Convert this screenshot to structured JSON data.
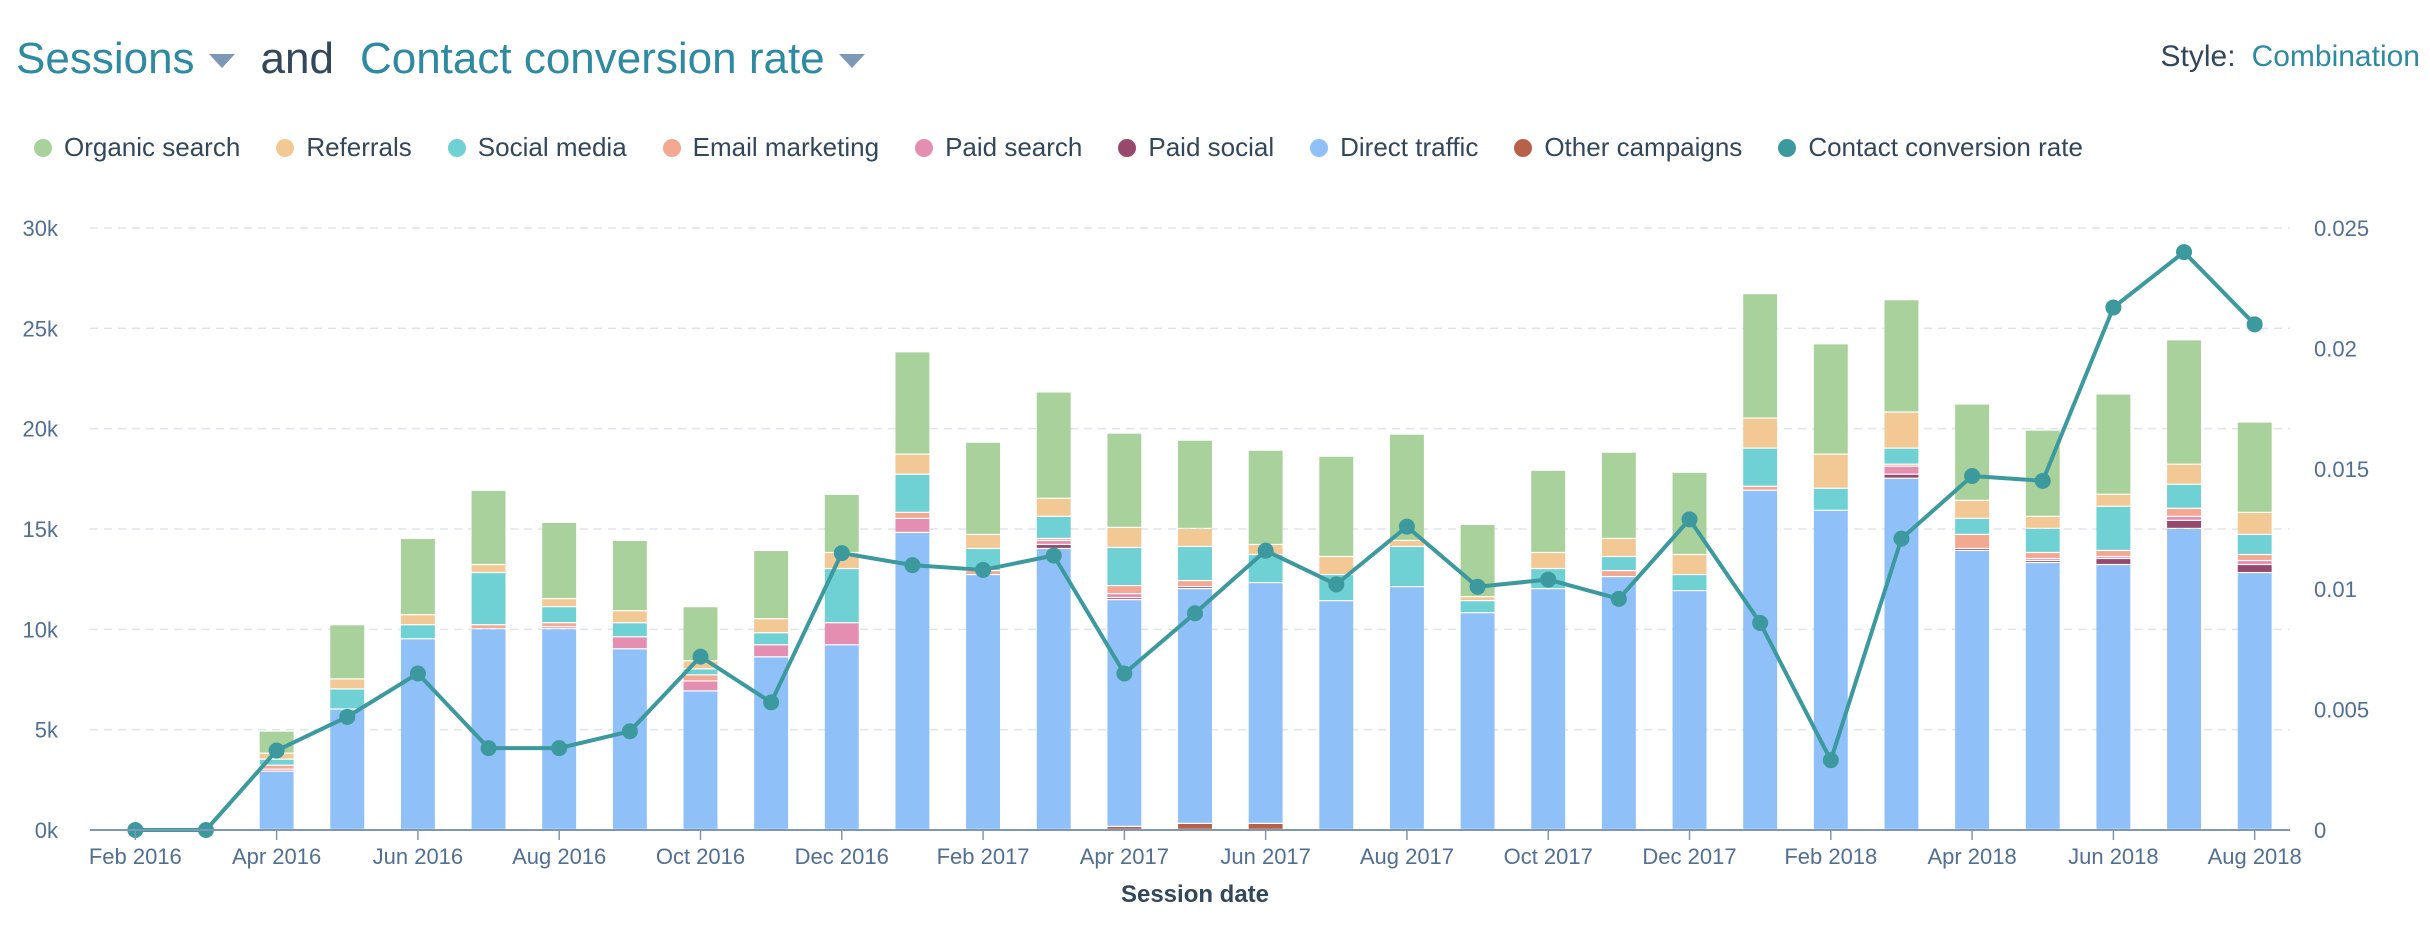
{
  "header": {
    "metric1": "Sessions",
    "and_text": "and",
    "metric2": "Contact conversion rate",
    "style_label": "Style:",
    "style_value": "Combination"
  },
  "colors": {
    "organic": "#a9d19b",
    "referrals": "#f2c994",
    "social": "#6fd1d4",
    "email": "#f2a891",
    "paidsearch": "#e48fb1",
    "paidsocial": "#98486b",
    "direct": "#8fc0f8",
    "other": "#b96049",
    "rate": "#3c999d",
    "grid": "#dfe3eb",
    "axis": "#516f90"
  },
  "chart_data": {
    "type": "bar",
    "stacked": true,
    "xlabel": "Session date",
    "categories": [
      "Feb 2016",
      "Mar 2016",
      "Apr 2016",
      "May 2016",
      "Jun 2016",
      "Jul 2016",
      "Aug 2016",
      "Sep 2016",
      "Oct 2016",
      "Nov 2016",
      "Dec 2016",
      "Jan 2017",
      "Feb 2017",
      "Mar 2017",
      "Apr 2017",
      "May 2017",
      "Jun 2017",
      "Jul 2017",
      "Aug 2017",
      "Sep 2017",
      "Oct 2017",
      "Nov 2017",
      "Dec 2017",
      "Jan 2018",
      "Feb 2018",
      "Mar 2018",
      "Apr 2018",
      "May 2018",
      "Jun 2018",
      "Jul 2018",
      "Aug 2018"
    ],
    "tick_labels": [
      "Feb 2016",
      "Apr 2016",
      "Jun 2016",
      "Aug 2016",
      "Oct 2016",
      "Dec 2016",
      "Feb 2017",
      "Apr 2017",
      "Jun 2017",
      "Aug 2017",
      "Oct 2017",
      "Dec 2017",
      "Feb 2018",
      "Apr 2018",
      "Jun 2018",
      "Aug 2018"
    ],
    "y_left": {
      "ylim": [
        0,
        30000
      ],
      "ticks": [
        0,
        5000,
        10000,
        15000,
        20000,
        25000,
        30000
      ],
      "tick_labels": [
        "0k",
        "5k",
        "10k",
        "15k",
        "20k",
        "25k",
        "30k"
      ]
    },
    "y_right": {
      "ylim": [
        0,
        0.025
      ],
      "ticks": [
        0,
        0.005,
        0.01,
        0.015,
        0.02,
        0.025
      ],
      "tick_labels": [
        "0",
        "0.005",
        "0.01",
        "0.015",
        "0.02",
        "0.025"
      ]
    },
    "grid": true,
    "legend_position": "top",
    "series": [
      {
        "name": "Other campaigns",
        "key": "other",
        "values": [
          0,
          0,
          0,
          0,
          0,
          0,
          0,
          0,
          0,
          0,
          0,
          0,
          0,
          0,
          150,
          300,
          300,
          0,
          0,
          0,
          0,
          0,
          0,
          0,
          0,
          0,
          0,
          0,
          0,
          0,
          0
        ]
      },
      {
        "name": "Direct traffic",
        "key": "direct",
        "values": [
          0,
          0,
          2900,
          6000,
          9500,
          10000,
          10000,
          9000,
          6900,
          8600,
          9200,
          14800,
          12700,
          14000,
          11300,
          11700,
          12000,
          11400,
          12100,
          10800,
          12000,
          12600,
          11900,
          16900,
          15900,
          17500,
          13900,
          13300,
          13200,
          15000,
          12800
        ]
      },
      {
        "name": "Paid social",
        "key": "paidsocial",
        "values": [
          0,
          0,
          0,
          0,
          0,
          0,
          0,
          0,
          0,
          0,
          0,
          0,
          0,
          200,
          100,
          100,
          0,
          0,
          0,
          0,
          0,
          0,
          0,
          0,
          0,
          200,
          100,
          100,
          300,
          400,
          400
        ]
      },
      {
        "name": "Paid search",
        "key": "paidsearch",
        "values": [
          0,
          0,
          100,
          0,
          0,
          0,
          100,
          600,
          500,
          600,
          1100,
          700,
          0,
          200,
          200,
          0,
          0,
          0,
          0,
          0,
          0,
          0,
          0,
          0,
          0,
          400,
          0,
          100,
          100,
          200,
          200
        ]
      },
      {
        "name": "Email marketing",
        "key": "email",
        "values": [
          0,
          0,
          200,
          0,
          0,
          200,
          200,
          0,
          300,
          0,
          0,
          300,
          200,
          100,
          400,
          300,
          0,
          0,
          0,
          0,
          0,
          300,
          0,
          200,
          0,
          100,
          700,
          300,
          300,
          400,
          300
        ]
      },
      {
        "name": "Social media",
        "key": "social",
        "values": [
          0,
          0,
          300,
          1000,
          700,
          2600,
          800,
          700,
          300,
          600,
          2700,
          1900,
          1100,
          1100,
          1900,
          1700,
          1400,
          1300,
          2000,
          600,
          1000,
          700,
          800,
          1900,
          1100,
          800,
          800,
          1200,
          2200,
          1200,
          1000
        ]
      },
      {
        "name": "Referrals",
        "key": "referrals",
        "values": [
          0,
          0,
          300,
          500,
          500,
          400,
          400,
          600,
          400,
          700,
          800,
          1000,
          700,
          900,
          1000,
          900,
          500,
          900,
          300,
          200,
          800,
          900,
          1000,
          1500,
          1700,
          1800,
          900,
          600,
          600,
          1000,
          1100
        ]
      },
      {
        "name": "Organic search",
        "key": "organic",
        "values": [
          0,
          0,
          1100,
          2700,
          3800,
          3700,
          3800,
          3500,
          2700,
          3400,
          2900,
          5100,
          4600,
          5300,
          4700,
          4400,
          4700,
          5000,
          5300,
          3600,
          4100,
          4300,
          4100,
          6200,
          5500,
          5600,
          4800,
          4300,
          5000,
          6200,
          4500
        ]
      }
    ],
    "line_series": {
      "name": "Contact conversion rate",
      "axis": "right",
      "values": [
        0,
        0,
        0.0033,
        0.0047,
        0.0065,
        0.0034,
        0.0034,
        0.0041,
        0.0072,
        0.0053,
        0.0115,
        0.011,
        0.0108,
        0.0114,
        0.0065,
        0.009,
        0.0116,
        0.0102,
        0.0126,
        0.0101,
        0.0104,
        0.0096,
        0.0129,
        0.0086,
        0.0029,
        0.0121,
        0.0147,
        0.0145,
        0.0217,
        0.024,
        0.021
      ]
    }
  },
  "legend": [
    {
      "name": "Organic search",
      "key": "organic"
    },
    {
      "name": "Referrals",
      "key": "referrals"
    },
    {
      "name": "Social media",
      "key": "social"
    },
    {
      "name": "Email marketing",
      "key": "email"
    },
    {
      "name": "Paid search",
      "key": "paidsearch"
    },
    {
      "name": "Paid social",
      "key": "paidsocial"
    },
    {
      "name": "Direct traffic",
      "key": "direct"
    },
    {
      "name": "Other campaigns",
      "key": "other"
    },
    {
      "name": "Contact conversion rate",
      "key": "rate"
    }
  ]
}
